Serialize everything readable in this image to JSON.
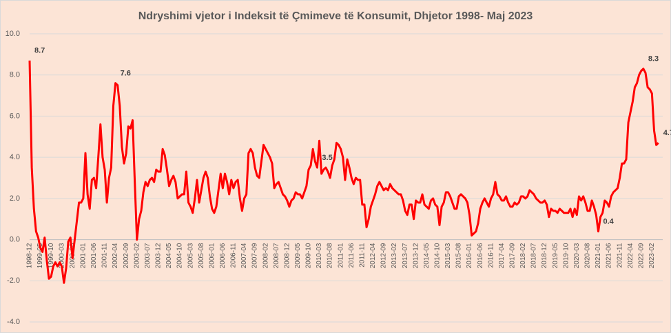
{
  "chart_data": {
    "type": "line",
    "title": "Ndryshimi vjetor i Indeksit të Çmimeve të Konsumit, Dhjetor 1998- Maj 2023",
    "color": "#ff0000",
    "grid": true,
    "ylim": [
      -4,
      10
    ],
    "yticks": [
      {
        "value": -4,
        "label": "-4.0"
      },
      {
        "value": -2,
        "label": "-2.0"
      },
      {
        "value": 0,
        "label": "0.0"
      },
      {
        "value": 2,
        "label": "2.0"
      },
      {
        "value": 4,
        "label": "4.0"
      },
      {
        "value": 6,
        "label": "6.0"
      },
      {
        "value": 8,
        "label": "8.0"
      },
      {
        "value": 10,
        "label": "10.0"
      }
    ],
    "categories": [
      "1998-12",
      null,
      null,
      null,
      null,
      "1999-05",
      null,
      null,
      null,
      null,
      "1999-10",
      null,
      null,
      null,
      null,
      "2000-03",
      null,
      null,
      null,
      null,
      "2000-08",
      null,
      null,
      null,
      null,
      "2001-01",
      null,
      null,
      null,
      null,
      "2001-06",
      null,
      null,
      null,
      null,
      "2001-11",
      null,
      null,
      null,
      null,
      "2002-04",
      null,
      null,
      null,
      null,
      "2002-09",
      null,
      null,
      null,
      null,
      "2003-02",
      null,
      null,
      null,
      null,
      "2003-07",
      null,
      null,
      null,
      null,
      "2003-12",
      null,
      null,
      null,
      null,
      "2004-05",
      null,
      null,
      null,
      null,
      "2004-10",
      null,
      null,
      null,
      null,
      "2005-03",
      null,
      null,
      null,
      null,
      "2005-08",
      null,
      null,
      null,
      null,
      "2006-01",
      null,
      null,
      null,
      null,
      "2006-06",
      null,
      null,
      null,
      null,
      "2006-11",
      null,
      null,
      null,
      null,
      "2007-04",
      null,
      null,
      null,
      null,
      "2007-09",
      null,
      null,
      null,
      null,
      "2008-02",
      null,
      null,
      null,
      null,
      "2008-07",
      null,
      null,
      null,
      null,
      "2008-12",
      null,
      null,
      null,
      null,
      "2009-05",
      null,
      null,
      null,
      null,
      "2009-10",
      null,
      null,
      null,
      null,
      "2010-03",
      null,
      null,
      null,
      null,
      "2010-08",
      null,
      null,
      null,
      null,
      "2011-01",
      null,
      null,
      null,
      null,
      "2011-06",
      null,
      null,
      null,
      null,
      "2011-11",
      null,
      null,
      null,
      null,
      "2012-04",
      null,
      null,
      null,
      null,
      "2012-09",
      null,
      null,
      null,
      null,
      "2013-02",
      null,
      null,
      null,
      null,
      "2013-07",
      null,
      null,
      null,
      null,
      "2013-12",
      null,
      null,
      null,
      null,
      "2014-05",
      null,
      null,
      null,
      null,
      "2014-10",
      null,
      null,
      null,
      null,
      "2015-03",
      null,
      null,
      null,
      null,
      "2015-08",
      null,
      null,
      null,
      null,
      "2016-01",
      null,
      null,
      null,
      null,
      "2016-06",
      null,
      null,
      null,
      null,
      "2016-11",
      null,
      null,
      null,
      null,
      "2017-04",
      null,
      null,
      null,
      null,
      "2017-09",
      null,
      null,
      null,
      null,
      "2018-02",
      null,
      null,
      null,
      null,
      "2018-07",
      null,
      null,
      null,
      null,
      "2018-12",
      null,
      null,
      null,
      null,
      "2019-05",
      null,
      null,
      null,
      null,
      "2019-10",
      null,
      null,
      null,
      null,
      "2020-03",
      null,
      null,
      null,
      null,
      "2020-08",
      null,
      null,
      null,
      null,
      "2021-01",
      null,
      null,
      null,
      null,
      "2021-06",
      null,
      null,
      null,
      null,
      "2021-11",
      null,
      null,
      null,
      null,
      "2022-04",
      null,
      null,
      null,
      null,
      "2022-09",
      null,
      null,
      null,
      null,
      "2023-02",
      null,
      null,
      null
    ],
    "values": [
      8.7,
      3.5,
      1.5,
      0.4,
      0.1,
      -0.4,
      -0.6,
      0.1,
      -1.0,
      -1.9,
      -1.8,
      -1.3,
      -1.1,
      -1.3,
      -1.1,
      -1.3,
      -2.1,
      -1.4,
      -0.1,
      0.1,
      -0.9,
      0.0,
      0.9,
      1.8,
      1.8,
      2.0,
      4.2,
      2.2,
      1.5,
      2.9,
      3.0,
      2.5,
      4.0,
      5.6,
      4.0,
      3.4,
      1.8,
      3.0,
      3.5,
      6.5,
      7.6,
      7.5,
      6.5,
      4.5,
      3.7,
      4.2,
      5.5,
      5.4,
      5.8,
      2.8,
      0.0,
      1.0,
      1.4,
      2.3,
      2.8,
      2.6,
      2.9,
      3.0,
      2.8,
      3.4,
      3.3,
      3.3,
      4.4,
      4.1,
      3.4,
      2.6,
      2.9,
      3.1,
      2.8,
      2.0,
      2.1,
      2.2,
      2.2,
      3.3,
      1.8,
      1.6,
      1.3,
      2.0,
      2.9,
      1.8,
      2.4,
      3.0,
      3.3,
      3.0,
      2.1,
      1.5,
      1.3,
      1.6,
      2.4,
      3.2,
      2.5,
      3.2,
      2.8,
      2.2,
      2.9,
      2.5,
      2.8,
      2.9,
      2.0,
      1.4,
      2.0,
      2.2,
      4.2,
      4.4,
      4.2,
      3.5,
      3.1,
      3.0,
      3.8,
      4.6,
      4.4,
      4.2,
      4.0,
      3.7,
      2.5,
      2.7,
      2.8,
      2.5,
      2.2,
      2.1,
      1.9,
      1.6,
      1.9,
      2.0,
      2.3,
      2.2,
      2.2,
      2.0,
      2.3,
      2.6,
      3.4,
      3.6,
      4.4,
      3.8,
      3.5,
      4.8,
      3.2,
      3.4,
      3.5,
      3.3,
      3.0,
      3.6,
      3.9,
      4.7,
      4.6,
      4.4,
      4.0,
      2.9,
      3.9,
      3.5,
      3.0,
      2.7,
      3.0,
      2.9,
      2.9,
      1.7,
      1.7,
      0.6,
      1.0,
      1.6,
      1.9,
      2.2,
      2.6,
      2.8,
      2.6,
      2.4,
      2.5,
      2.4,
      2.7,
      2.5,
      2.4,
      2.3,
      2.2,
      2.2,
      1.9,
      1.4,
      1.2,
      1.7,
      1.7,
      1.0,
      1.9,
      1.8,
      1.8,
      2.2,
      1.7,
      1.6,
      1.5,
      1.9,
      2.0,
      1.7,
      1.6,
      0.7,
      1.6,
      1.8,
      2.3,
      2.3,
      2.1,
      1.8,
      1.5,
      1.5,
      2.1,
      2.2,
      2.1,
      2.0,
      1.8,
      1.2,
      0.2,
      0.3,
      0.4,
      0.8,
      1.5,
      1.8,
      2.0,
      1.8,
      1.6,
      2.0,
      2.2,
      2.8,
      2.2,
      2.1,
      1.9,
      1.9,
      2.1,
      1.8,
      1.6,
      1.6,
      1.8,
      1.7,
      1.8,
      2.1,
      2.1,
      2.0,
      2.1,
      2.4,
      2.3,
      2.2,
      2.0,
      1.9,
      1.8,
      1.8,
      1.9,
      1.7,
      1.1,
      1.5,
      1.4,
      1.4,
      1.3,
      1.5,
      1.4,
      1.3,
      1.3,
      1.3,
      1.5,
      1.1,
      1.5,
      1.2,
      2.1,
      1.9,
      2.1,
      1.8,
      1.4,
      1.4,
      1.9,
      1.6,
      1.2,
      0.4,
      1.1,
      1.3,
      1.9,
      1.8,
      1.6,
      2.1,
      2.3,
      2.4,
      2.5,
      3.0,
      3.7,
      3.7,
      3.9,
      5.7,
      6.2,
      6.7,
      7.4,
      7.6,
      8.0,
      8.2,
      8.3,
      8.1,
      7.4,
      7.3,
      7.1,
      5.3,
      4.6,
      4.7
    ],
    "value_labels": [
      "8.7",
      null,
      null,
      null,
      null,
      null,
      null,
      null,
      null,
      null,
      null,
      null,
      null,
      null,
      null,
      null,
      null,
      null,
      null,
      null,
      null,
      null,
      null,
      null,
      null,
      null,
      null,
      null,
      null,
      null,
      null,
      null,
      null,
      null,
      null,
      null,
      null,
      null,
      null,
      null,
      "7.6",
      null,
      null,
      null,
      null,
      null,
      null,
      null,
      null,
      null,
      null,
      null,
      null,
      null,
      null,
      null,
      null,
      null,
      null,
      null,
      null,
      null,
      null,
      null,
      null,
      null,
      null,
      null,
      null,
      null,
      null,
      null,
      null,
      null,
      null,
      null,
      null,
      null,
      null,
      null,
      null,
      null,
      null,
      null,
      null,
      null,
      null,
      null,
      null,
      null,
      null,
      null,
      null,
      null,
      null,
      null,
      null,
      null,
      null,
      null,
      null,
      null,
      null,
      null,
      null,
      null,
      null,
      null,
      null,
      null,
      null,
      null,
      null,
      null,
      null,
      null,
      null,
      null,
      null,
      null,
      null,
      null,
      null,
      null,
      null,
      null,
      null,
      null,
      null,
      null,
      null,
      null,
      null,
      null,
      "3.5",
      null,
      null,
      null,
      null,
      null,
      null,
      null,
      null,
      null,
      null,
      null,
      null,
      null,
      null,
      null,
      null,
      null,
      null,
      null,
      null,
      null,
      null,
      null,
      null,
      null,
      null,
      null,
      null,
      null,
      null,
      null,
      null,
      null,
      null,
      null,
      null,
      null,
      null,
      null,
      null,
      null,
      null,
      null,
      null,
      null,
      null,
      null,
      null,
      null,
      null,
      null,
      null,
      null,
      null,
      null,
      null,
      null,
      null,
      null,
      null,
      null,
      null,
      null,
      null,
      null,
      null,
      null,
      null,
      null,
      null,
      null,
      null,
      null,
      null,
      null,
      null,
      null,
      null,
      null,
      null,
      null,
      null,
      null,
      null,
      null,
      null,
      null,
      null,
      null,
      null,
      null,
      null,
      null,
      null,
      null,
      null,
      null,
      null,
      null,
      null,
      null,
      null,
      null,
      null,
      null,
      null,
      null,
      null,
      null,
      null,
      null,
      null,
      null,
      null,
      null,
      null,
      null,
      null,
      null,
      null,
      null,
      null,
      null,
      null,
      null,
      null,
      null,
      null,
      null,
      null,
      "0.4",
      null,
      null,
      null,
      null,
      null,
      null,
      null,
      null,
      null,
      null,
      null,
      null,
      null,
      null,
      null,
      null,
      null,
      null,
      null,
      null,
      "8.3",
      null,
      null,
      null,
      null,
      null,
      null,
      "4.7"
    ]
  }
}
